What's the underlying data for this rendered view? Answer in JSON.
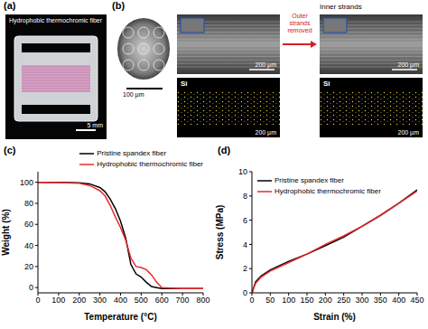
{
  "panel_a": {
    "letter": "(a)",
    "title": "Hydrophobic thermochromic fiber",
    "scale_bar": "5 mm"
  },
  "panel_b": {
    "letter": "(b)",
    "cross_section_scale_bar": "100 µm",
    "before": {
      "sem_scale_bar": "200 µm",
      "map_label": "Si",
      "map_scale_bar": "200 µm"
    },
    "arrow_label": "Outer strands removed",
    "after": {
      "title": "Inner strands",
      "sem_scale_bar": "200 µm",
      "map_label": "Si",
      "map_scale_bar": "200 µm"
    }
  },
  "chart_data": [
    {
      "panel": "(c)",
      "type": "line",
      "x_label": "Temperature (°C)",
      "y_label": "Weight (%)",
      "x": [
        0,
        100,
        200,
        250,
        300,
        325,
        350,
        375,
        400,
        425,
        450,
        475,
        500,
        525,
        550,
        575,
        600,
        700,
        800
      ],
      "series": [
        {
          "name": "Pristine spandex fiber",
          "color": "#000000",
          "values": [
            100,
            100,
            99.5,
            98.5,
            95,
            91,
            84,
            75,
            63,
            47,
            22,
            13,
            10,
            5,
            1,
            0,
            -1,
            -1,
            -1
          ]
        },
        {
          "name": "Hydrophobic thermochromic fiber",
          "color": "#e8282b",
          "values": [
            100,
            99.8,
            99,
            97,
            92,
            87,
            78,
            67,
            57,
            45,
            28,
            20,
            19,
            17,
            12,
            5,
            0,
            -1,
            -1
          ]
        }
      ],
      "xlim": [
        0,
        800
      ],
      "xticks": [
        0,
        100,
        200,
        300,
        400,
        500,
        600,
        700,
        800
      ],
      "ylim": [
        -5,
        110
      ],
      "yticks": [
        0,
        20,
        40,
        60,
        80,
        100
      ],
      "legend": "top"
    },
    {
      "panel": "(d)",
      "type": "line",
      "x_label": "Strain (%)",
      "y_label": "Stress (MPa)",
      "x": [
        0,
        10,
        25,
        50,
        100,
        150,
        200,
        250,
        300,
        350,
        400,
        450
      ],
      "series": [
        {
          "name": "Pristine spandex fiber",
          "color": "#000000",
          "values": [
            0,
            0.9,
            1.4,
            1.9,
            2.6,
            3.2,
            3.9,
            4.6,
            5.5,
            6.4,
            7.4,
            8.5
          ]
        },
        {
          "name": "Hydrophobic thermochromic fiber",
          "color": "#e8282b",
          "values": [
            0,
            0.8,
            1.3,
            1.8,
            2.5,
            3.2,
            4.0,
            4.7,
            5.5,
            6.4,
            7.4,
            8.4
          ]
        }
      ],
      "xlim": [
        0,
        450
      ],
      "xticks": [
        0,
        50,
        100,
        150,
        200,
        250,
        300,
        350,
        400,
        450
      ],
      "ylim": [
        0,
        10
      ],
      "yticks": [
        0,
        2,
        4,
        6,
        8,
        10
      ],
      "legend": "upper left"
    }
  ]
}
